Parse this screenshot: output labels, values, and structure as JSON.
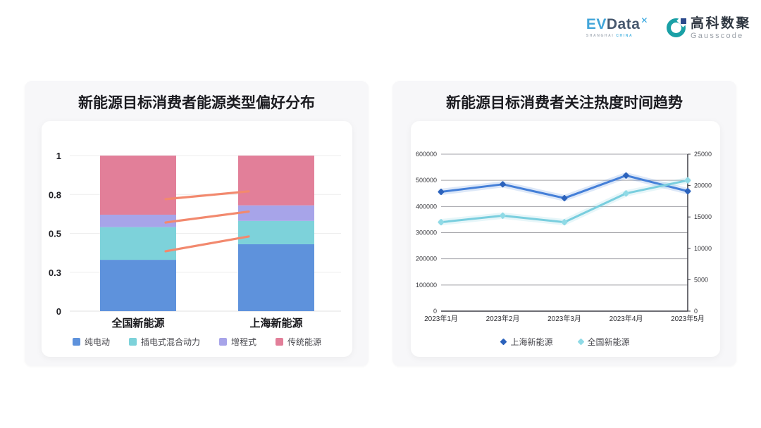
{
  "header": {
    "evdata_logo": {
      "ev": "EV",
      "data": "Data",
      "mark": "✕",
      "subtitle_left": "SHANGHAI",
      "subtitle_right": "CHINA"
    },
    "gausscode_logo": {
      "name_cn": "高科数聚",
      "name_en": "Gausscode"
    }
  },
  "colors": {
    "bar_blue": "#5E92DC",
    "bar_teal": "#7DD2DA",
    "bar_purple": "#A7A4E9",
    "bar_pink": "#E27F99",
    "line_shanghai": "#447FD8",
    "line_national": "#79CEDE",
    "trend_line": "#F2896E"
  },
  "chart_data": [
    {
      "type": "bar",
      "stacked": true,
      "title": "新能源目标消费者能源类型偏好分布",
      "categories": [
        "全国新能源",
        "上海新能源"
      ],
      "series": [
        {
          "name": "纯电动",
          "color": "#5E92DC",
          "values": [
            0.33,
            0.43
          ]
        },
        {
          "name": "插电式混合动力",
          "color": "#7DD2DA",
          "values": [
            0.21,
            0.15
          ]
        },
        {
          "name": "增程式",
          "color": "#A7A4E9",
          "values": [
            0.08,
            0.1
          ]
        },
        {
          "name": "传统能源",
          "color": "#E27F99",
          "values": [
            0.38,
            0.32
          ]
        }
      ],
      "ylim": [
        0,
        1
      ],
      "y_ticks": [
        {
          "label": "0",
          "v": 0
        },
        {
          "label": "0.3",
          "v": 0.25
        },
        {
          "label": "0.5",
          "v": 0.5
        },
        {
          "label": "0.8",
          "v": 0.75
        },
        {
          "label": "1",
          "v": 1
        }
      ],
      "trend_lines": [
        {
          "from": 0.385,
          "to": 0.48
        },
        {
          "from": 0.57,
          "to": 0.64
        },
        {
          "from": 0.72,
          "to": 0.77
        }
      ],
      "trend_color": "#F2896E",
      "legend_position": "bottom",
      "grid": true
    },
    {
      "type": "line",
      "title": "新能源目标消费者关注热度时间趋势",
      "x": [
        "2023年1月",
        "2023年2月",
        "2023年3月",
        "2023年4月",
        "2023年5月"
      ],
      "series": [
        {
          "name": "上海新能源",
          "axis": "right",
          "color": "#447FD8",
          "marker": "#2B62BC",
          "values": [
            19000,
            20200,
            18000,
            21600,
            19100
          ]
        },
        {
          "name": "全国新能源",
          "axis": "left",
          "color": "#79CEDE",
          "marker": "#8FDAE6",
          "values": [
            340000,
            365000,
            340000,
            450000,
            500000
          ]
        }
      ],
      "left_axis": {
        "max": 600000,
        "ticks": [
          0,
          100000,
          200000,
          300000,
          400000,
          500000,
          600000
        ]
      },
      "right_axis": {
        "max": 25000,
        "ticks": [
          0,
          5000,
          10000,
          15000,
          20000,
          25000
        ]
      },
      "grid": true,
      "legend_position": "bottom"
    }
  ]
}
